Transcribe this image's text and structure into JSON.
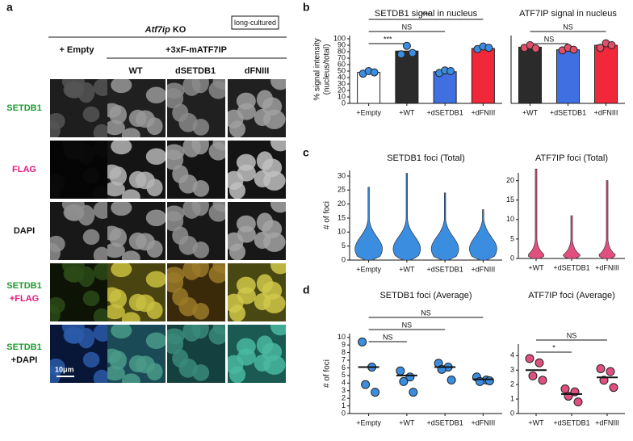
{
  "panel_labels": [
    "a",
    "b",
    "c",
    "d"
  ],
  "panel_a": {
    "badge": "long-cultured",
    "title_italic": "Atf7ip",
    "title_rest": "KO",
    "conditions": [
      "+ Empty",
      "+3xF-mATF7IP"
    ],
    "columns": [
      "WT",
      "dSETDB1",
      "dFNIII"
    ],
    "rows": [
      [
        "SETDB1"
      ],
      [
        "FLAG"
      ],
      [
        "DAPI"
      ],
      [
        "SETDB1",
        "+FLAG"
      ],
      [
        "SETDB1",
        "+DAPI"
      ]
    ],
    "scale_bar": "10μm"
  },
  "chart_data": [
    {
      "type": "bar",
      "title": "SETDB1 signal in nucleus",
      "ylabel": [
        "% signal intensity",
        "(nucleus/total)"
      ],
      "categories": [
        "+Empty",
        "+WT",
        "+dSETDB1",
        "+dFNIII"
      ],
      "values": [
        48,
        81,
        49,
        85
      ],
      "colors": [
        "#ffffff",
        "#2b2b2b",
        "#3f6fe0",
        "#f0283a"
      ],
      "points": [
        [
          46,
          50,
          48
        ],
        [
          76,
          89,
          78
        ],
        [
          47,
          51,
          50
        ],
        [
          84,
          88,
          86
        ]
      ],
      "point_color": "#3b8de0",
      "ylim": [
        0,
        105
      ],
      "yticks": [
        0,
        10,
        20,
        30,
        40,
        50,
        60,
        70,
        80,
        90,
        100
      ],
      "comparisons": [
        {
          "from": "+Empty",
          "to": "+WT",
          "label": "***"
        },
        {
          "from": "+Empty",
          "to": "+dSETDB1",
          "label": "NS"
        },
        {
          "from": "+Empty",
          "to": "+dFNIII",
          "label": "***"
        }
      ]
    },
    {
      "type": "bar",
      "title": "ATF7IP signal in nucleus",
      "categories": [
        "+WT",
        "+dSETDB1",
        "+dFNIII"
      ],
      "values": [
        87,
        83,
        90
      ],
      "colors": [
        "#2b2b2b",
        "#3f6fe0",
        "#f0283a"
      ],
      "points": [
        [
          86,
          90,
          85
        ],
        [
          82,
          86,
          83
        ],
        [
          86,
          93,
          90
        ]
      ],
      "point_color": "#e0506a",
      "ylim": [
        0,
        105
      ],
      "comparisons": [
        {
          "from": "+WT",
          "to": "+dSETDB1",
          "label": "NS"
        },
        {
          "from": "+WT",
          "to": "+dFNIII",
          "label": "NS"
        }
      ]
    },
    {
      "type": "violin",
      "title": "SETDB1 foci (Total)",
      "ylabel": [
        "# of foci"
      ],
      "categories": [
        "+Empty",
        "+WT",
        "+dSETDB1",
        "+dFNIII"
      ],
      "values": [
        26,
        31,
        24,
        18
      ],
      "color": "#3b8de0",
      "ylim": [
        0,
        32
      ],
      "yticks": [
        0,
        5,
        10,
        15,
        20,
        25,
        30
      ]
    },
    {
      "type": "violin",
      "title": "ATF7IP foci (Total)",
      "categories": [
        "+WT",
        "+dSETDB1",
        "+dFNIII"
      ],
      "values": [
        23,
        11,
        20
      ],
      "color": "#e0507e",
      "ylim": [
        0,
        22
      ],
      "yticks": [
        0,
        5,
        10,
        15,
        20
      ]
    },
    {
      "type": "dot",
      "title": "SETDB1 foci (Average)",
      "ylabel": [
        "# of foci"
      ],
      "categories": [
        "+Empty",
        "+WT",
        "+dSETDB1",
        "+dFNIII"
      ],
      "points": [
        [
          9.4,
          6.1,
          3.8,
          2.8
        ],
        [
          5.6,
          4.8,
          4.2,
          2.8
        ],
        [
          6.6,
          6.1,
          5.8,
          4.4
        ],
        [
          4.8,
          4.4,
          4.2,
          4.3
        ]
      ],
      "means": [
        6.1,
        5.0,
        6.1,
        4.5
      ],
      "color": "#3b8de0",
      "ylim": [
        0,
        10.5
      ],
      "yticks": [
        0,
        1,
        2,
        3,
        4,
        5,
        6,
        7,
        8,
        9,
        10
      ],
      "comparisons": [
        {
          "from": "+Empty",
          "to": "+WT",
          "label": "NS"
        },
        {
          "from": "+Empty",
          "to": "+dSETDB1",
          "label": "NS"
        },
        {
          "from": "+Empty",
          "to": "+dFNIII",
          "label": "NS"
        }
      ]
    },
    {
      "type": "dot",
      "title": "ATF7IP foci (Average)",
      "categories": [
        "+WT",
        "+dSETDB1",
        "+dFNIII"
      ],
      "points": [
        [
          3.8,
          3.5,
          2.6,
          2.3
        ],
        [
          1.7,
          1.5,
          1.2,
          0.8
        ],
        [
          3.1,
          2.9,
          2.3,
          1.8
        ]
      ],
      "means": [
        3.0,
        1.35,
        2.5
      ],
      "color": "#e0507e",
      "ylim": [
        0,
        4.8
      ],
      "yticks": [
        0,
        1,
        2,
        3,
        4
      ],
      "comparisons": [
        {
          "from": "+WT",
          "to": "+dSETDB1",
          "label": "*"
        },
        {
          "from": "+WT",
          "to": "+dFNIII",
          "label": "NS"
        }
      ]
    }
  ]
}
